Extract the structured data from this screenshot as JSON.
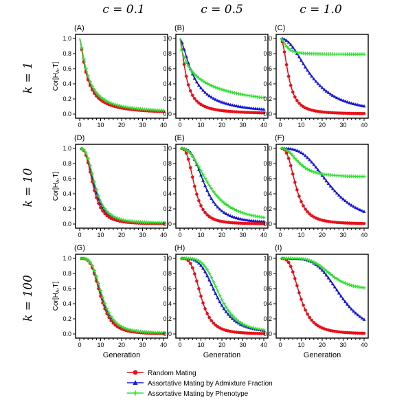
{
  "column_labels": [
    "c = 0.1",
    "c = 0.5",
    "c = 1.0"
  ],
  "row_labels": [
    "k = 1",
    "k = 10",
    "k = 100"
  ],
  "legend": [
    {
      "label": "Random Mating",
      "color": "#e8101a",
      "marker": "circle"
    },
    {
      "label": "Assortative Mating by Admixture Fraction",
      "color": "#1919d6",
      "marker": "triangle"
    },
    {
      "label": "Assortative Mating by Phenotype",
      "color": "#2fe02f",
      "marker": "plus"
    }
  ],
  "chart_data": [
    {
      "panel": "(A)",
      "type": "line",
      "xlabel": "",
      "ylabel": "Cor[H_A,T]",
      "xlim": [
        0,
        40
      ],
      "ylim": [
        0,
        1
      ],
      "xticks": [
        "0",
        "10",
        "20",
        "30",
        "40"
      ],
      "yticks": [
        "0.0",
        "0.2",
        "0.4",
        "0.6",
        "0.8",
        "1.0"
      ],
      "series": [
        {
          "name": "Random Mating",
          "halflife": 3.5,
          "steep": 1.4,
          "asymptote": 0
        },
        {
          "name": "Assortative Mating by Admixture Fraction",
          "halflife": 3.8,
          "steep": 1.4,
          "asymptote": 0
        },
        {
          "name": "Assortative Mating by Phenotype",
          "halflife": 4.0,
          "steep": 1.4,
          "asymptote": 0.01
        }
      ]
    },
    {
      "panel": "(B)",
      "type": "line",
      "xlabel": "",
      "ylabel": "",
      "xlim": [
        0,
        40
      ],
      "ylim": [
        0,
        1
      ],
      "xticks": [
        "0",
        "10",
        "20",
        "30",
        "40"
      ],
      "yticks": [
        "0.0",
        "0.2",
        "0.4",
        "0.6",
        "0.8",
        "1.0"
      ],
      "series": [
        {
          "name": "Random Mating",
          "halflife": 3.0,
          "steep": 1.6,
          "asymptote": 0
        },
        {
          "name": "Assortative Mating by Admixture Fraction",
          "halflife": 6.5,
          "steep": 1.5,
          "asymptote": 0
        },
        {
          "name": "Assortative Mating by Phenotype",
          "halflife": 8.0,
          "steep": 0.8,
          "asymptote": 0
        }
      ]
    },
    {
      "panel": "(C)",
      "type": "line",
      "xlabel": "",
      "ylabel": "",
      "xlim": [
        0,
        40
      ],
      "ylim": [
        0,
        1
      ],
      "xticks": [
        "0",
        "10",
        "20",
        "30",
        "40"
      ],
      "yticks": [
        "0.0",
        "0.2",
        "0.4",
        "0.6",
        "0.8",
        "1.0"
      ],
      "series": [
        {
          "name": "Random Mating",
          "halflife": 4.0,
          "steep": 2.2,
          "asymptote": 0
        },
        {
          "name": "Assortative Mating by Admixture Fraction",
          "halflife": 15.0,
          "steep": 2.2,
          "asymptote": 0
        },
        {
          "name": "Assortative Mating by Phenotype",
          "halflife": 3.0,
          "steep": 2.0,
          "asymptote": 0.79
        }
      ]
    },
    {
      "panel": "(D)",
      "type": "line",
      "xlabel": "",
      "ylabel": "Cor[H_A,T]",
      "xlim": [
        0,
        40
      ],
      "ylim": [
        0,
        1
      ],
      "xticks": [
        "0",
        "10",
        "20",
        "30",
        "40"
      ],
      "yticks": [
        "0.0",
        "0.2",
        "0.4",
        "0.6",
        "0.8",
        "1.0"
      ],
      "series": [
        {
          "name": "Random Mating",
          "halflife": 6.5,
          "steep": 3.0,
          "asymptote": 0
        },
        {
          "name": "Assortative Mating by Admixture Fraction",
          "halflife": 7.0,
          "steep": 3.0,
          "asymptote": 0.01
        },
        {
          "name": "Assortative Mating by Phenotype",
          "halflife": 7.5,
          "steep": 3.0,
          "asymptote": 0.01
        }
      ]
    },
    {
      "panel": "(E)",
      "type": "line",
      "xlabel": "",
      "ylabel": "",
      "xlim": [
        0,
        40
      ],
      "ylim": [
        0,
        1
      ],
      "xticks": [
        "0",
        "10",
        "20",
        "30",
        "40"
      ],
      "yticks": [
        "0.0",
        "0.2",
        "0.4",
        "0.6",
        "0.8",
        "1.0"
      ],
      "series": [
        {
          "name": "Random Mating",
          "halflife": 7.0,
          "steep": 3.2,
          "asymptote": 0
        },
        {
          "name": "Assortative Mating by Admixture Fraction",
          "halflife": 12.0,
          "steep": 3.2,
          "asymptote": 0.01
        },
        {
          "name": "Assortative Mating by Phenotype",
          "halflife": 14.0,
          "steep": 2.5,
          "asymptote": 0.02
        }
      ]
    },
    {
      "panel": "(F)",
      "type": "line",
      "xlabel": "",
      "ylabel": "",
      "xlim": [
        0,
        40
      ],
      "ylim": [
        0,
        1
      ],
      "xticks": [
        "0",
        "10",
        "20",
        "30",
        "40"
      ],
      "yticks": [
        "0.0",
        "0.2",
        "0.4",
        "0.6",
        "0.8",
        "1.0"
      ],
      "series": [
        {
          "name": "Random Mating",
          "halflife": 7.5,
          "steep": 3.0,
          "asymptote": 0
        },
        {
          "name": "Assortative Mating by Admixture Fraction",
          "halflife": 24.0,
          "steep": 3.2,
          "asymptote": 0
        },
        {
          "name": "Assortative Mating by Phenotype",
          "halflife": 9.0,
          "steep": 2.6,
          "asymptote": 0.62
        }
      ]
    },
    {
      "panel": "(G)",
      "type": "line",
      "xlabel": "Generation",
      "ylabel": "Cor[H_A,T]",
      "xlim": [
        0,
        40
      ],
      "ylim": [
        0,
        1
      ],
      "xticks": [
        "0",
        "10",
        "20",
        "30",
        "40"
      ],
      "yticks": [
        "0.0",
        "0.2",
        "0.4",
        "0.6",
        "0.8",
        "1.0"
      ],
      "series": [
        {
          "name": "Random Mating",
          "halflife": 10.0,
          "steep": 3.8,
          "asymptote": 0
        },
        {
          "name": "Assortative Mating by Admixture Fraction",
          "halflife": 10.5,
          "steep": 3.8,
          "asymptote": 0.01
        },
        {
          "name": "Assortative Mating by Phenotype",
          "halflife": 10.8,
          "steep": 3.8,
          "asymptote": 0.01
        }
      ]
    },
    {
      "panel": "(H)",
      "type": "line",
      "xlabel": "Generation",
      "ylabel": "",
      "xlim": [
        0,
        40
      ],
      "ylim": [
        0,
        1
      ],
      "xticks": [
        "0",
        "10",
        "20",
        "30",
        "40"
      ],
      "yticks": [
        "0.0",
        "0.2",
        "0.4",
        "0.6",
        "0.8",
        "1.0"
      ],
      "series": [
        {
          "name": "Random Mating",
          "halflife": 10.0,
          "steep": 3.8,
          "asymptote": 0
        },
        {
          "name": "Assortative Mating by Admixture Fraction",
          "halflife": 17.5,
          "steep": 4.0,
          "asymptote": 0.01
        },
        {
          "name": "Assortative Mating by Phenotype",
          "halflife": 19.0,
          "steep": 4.5,
          "asymptote": 0.02
        }
      ]
    },
    {
      "panel": "(I)",
      "type": "line",
      "xlabel": "Generation",
      "ylabel": "",
      "xlim": [
        0,
        40
      ],
      "ylim": [
        0,
        1
      ],
      "xticks": [
        "0",
        "10",
        "20",
        "30",
        "40"
      ],
      "yticks": [
        "0.0",
        "0.2",
        "0.4",
        "0.6",
        "0.8",
        "1.0"
      ],
      "series": [
        {
          "name": "Random Mating",
          "halflife": 9.5,
          "steep": 3.3,
          "asymptote": 0
        },
        {
          "name": "Assortative Mating by Admixture Fraction",
          "halflife": 29.0,
          "steep": 4.5,
          "asymptote": 0
        },
        {
          "name": "Assortative Mating by Phenotype",
          "halflife": 24.0,
          "steep": 5.0,
          "asymptote": 0.58
        }
      ]
    }
  ]
}
